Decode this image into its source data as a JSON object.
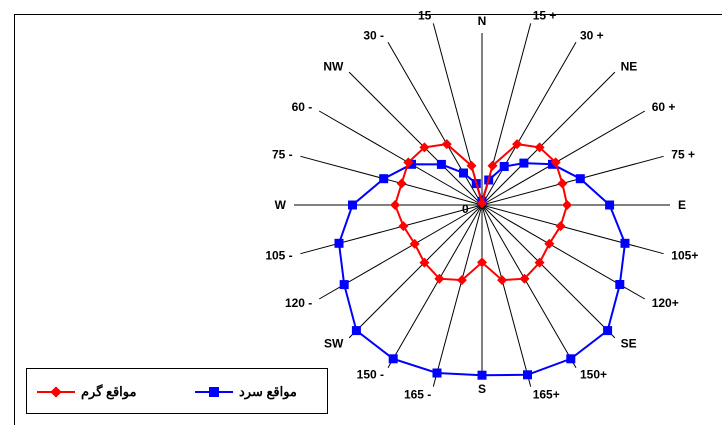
{
  "chart_data": {
    "type": "radar",
    "directions": [
      "N",
      "15 +",
      "30 +",
      "NE",
      "60 +",
      "75 +",
      "E",
      "105+",
      "120+",
      "SE",
      "150+",
      "165+",
      "S",
      "165 -",
      "150 -",
      "SW",
      "120 -",
      "105 -",
      "W",
      "75 -",
      "60 -",
      "NW",
      "30 -",
      "15"
    ],
    "center_label": "0",
    "r_max": 10,
    "grid": false,
    "legend_position": "bottom-left",
    "series": [
      {
        "name": "مواقع سرد",
        "color": "#0000ff",
        "marker": "square",
        "values": [
          0.2,
          1.4,
          2.4,
          3.2,
          4.4,
          5.5,
          6.9,
          8.0,
          8.6,
          9.6,
          9.6,
          9.5,
          9.2,
          9.4,
          9.6,
          9.6,
          8.6,
          8.0,
          7.0,
          5.5,
          4.4,
          3.1,
          2.0,
          1.2
        ]
      },
      {
        "name": "مواقع گرم",
        "color": "#ff0000",
        "marker": "diamond",
        "values": [
          0.1,
          2.2,
          3.8,
          4.4,
          4.6,
          4.5,
          4.6,
          4.4,
          4.2,
          4.4,
          4.6,
          4.2,
          3.1,
          4.2,
          4.6,
          4.4,
          4.2,
          4.4,
          4.7,
          4.5,
          4.6,
          4.4,
          3.8,
          2.2
        ]
      }
    ]
  }
}
